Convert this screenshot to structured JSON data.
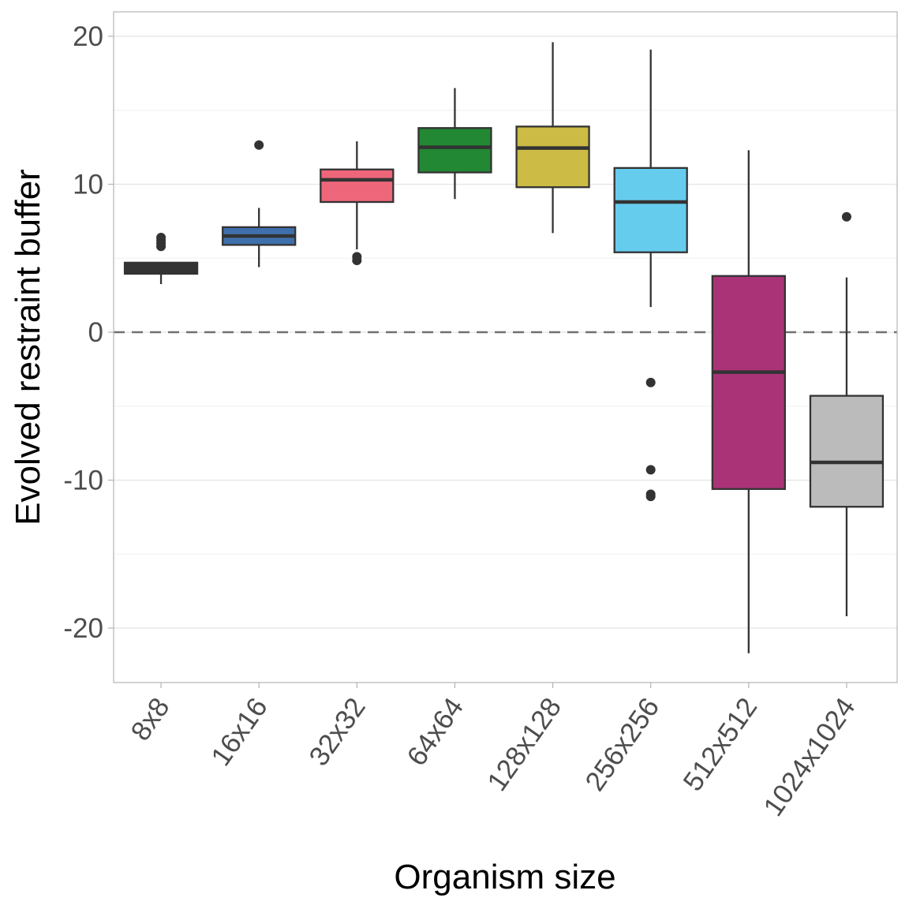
{
  "chart_data": {
    "type": "boxplot",
    "title": "",
    "xlabel": "Organism size",
    "ylabel": "Evolved restraint buffer",
    "ylim": [
      -23.7,
      21.7
    ],
    "yticks": [
      -20,
      -10,
      0,
      10,
      20
    ],
    "ytick_labels": [
      "-20",
      "-10",
      "0",
      "10",
      "20"
    ],
    "minor_gridlines": [
      -15,
      -5,
      5,
      15
    ],
    "grid": true,
    "reference_line": {
      "y": 0,
      "style": "dashed"
    },
    "legend": "none",
    "categories": [
      "8x8",
      "16x16",
      "32x32",
      "64x64",
      "128x128",
      "256x256",
      "512x512",
      "1024x1024"
    ],
    "series": [
      {
        "name": "8x8",
        "color": "#333333",
        "lower_whisker": 3.25,
        "q1": 3.95,
        "median": 4.3,
        "q3": 4.7,
        "upper_whisker": 4.75,
        "outliers": [
          5.8,
          6.0,
          6.2,
          6.4
        ]
      },
      {
        "name": "16x16",
        "color": "#3f70ad",
        "lower_whisker": 4.4,
        "q1": 5.9,
        "median": 6.5,
        "q3": 7.1,
        "upper_whisker": 8.4,
        "outliers": [
          12.65
        ]
      },
      {
        "name": "32x32",
        "color": "#ee667a",
        "lower_whisker": 5.6,
        "q1": 8.8,
        "median": 10.3,
        "q3": 11.0,
        "upper_whisker": 12.9,
        "outliers": [
          5.1,
          4.85
        ]
      },
      {
        "name": "64x64",
        "color": "#228833",
        "lower_whisker": 9.0,
        "q1": 10.8,
        "median": 12.5,
        "q3": 13.8,
        "upper_whisker": 16.5,
        "outliers": []
      },
      {
        "name": "128x128",
        "color": "#ccbb44",
        "lower_whisker": 6.7,
        "q1": 9.8,
        "median": 12.45,
        "q3": 13.9,
        "upper_whisker": 19.6,
        "outliers": []
      },
      {
        "name": "256x256",
        "color": "#66ccee",
        "lower_whisker": 1.7,
        "q1": 5.4,
        "median": 8.8,
        "q3": 11.1,
        "upper_whisker": 19.1,
        "outliers": [
          -3.4,
          -9.3,
          -10.95,
          -11.1
        ]
      },
      {
        "name": "512x512",
        "color": "#aa3377",
        "lower_whisker": -21.7,
        "q1": -10.6,
        "median": -2.7,
        "q3": 3.8,
        "upper_whisker": 12.3,
        "outliers": []
      },
      {
        "name": "1024x1024",
        "color": "#bbbbbb",
        "lower_whisker": -19.2,
        "q1": -11.8,
        "median": -8.8,
        "q3": -4.3,
        "upper_whisker": 3.7,
        "outliers": [
          7.8
        ]
      }
    ]
  }
}
